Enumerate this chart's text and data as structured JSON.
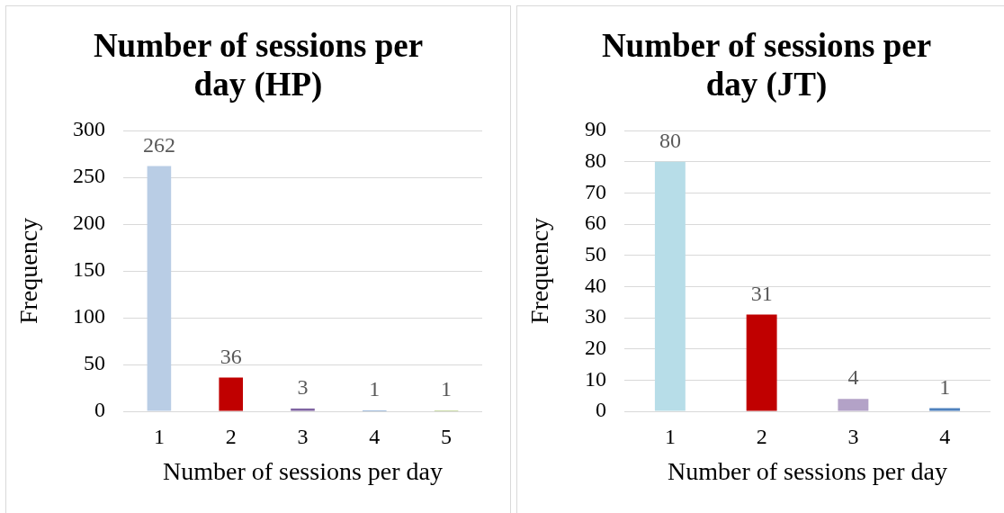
{
  "chart_data": [
    {
      "type": "bar",
      "title": "Number of sessions per day (HP)",
      "xlabel": "Number of sessions per day",
      "ylabel": "Frequency",
      "categories": [
        "1",
        "2",
        "3",
        "4",
        "5"
      ],
      "values": [
        262,
        36,
        3,
        1,
        1
      ],
      "colors": [
        "#b9cde5",
        "#c00000",
        "#8064a2",
        "#4f81bd",
        "#9bbb59"
      ],
      "ylim": [
        0,
        300
      ],
      "yticks": [
        0,
        50,
        100,
        150,
        200,
        250,
        300
      ],
      "grid": "y",
      "data_labels": true
    },
    {
      "type": "bar",
      "title": "Number of sessions per day (JT)",
      "xlabel": "Number of sessions per day",
      "ylabel": "Frequency",
      "categories": [
        "1",
        "2",
        "3",
        "4"
      ],
      "values": [
        80,
        31,
        4,
        1
      ],
      "colors": [
        "#b7dde8",
        "#c00000",
        "#b3a2c7",
        "#4f81bd"
      ],
      "ylim": [
        0,
        90
      ],
      "yticks": [
        0,
        10,
        20,
        30,
        40,
        50,
        60,
        70,
        80,
        90
      ],
      "grid": "y",
      "data_labels": true
    }
  ]
}
